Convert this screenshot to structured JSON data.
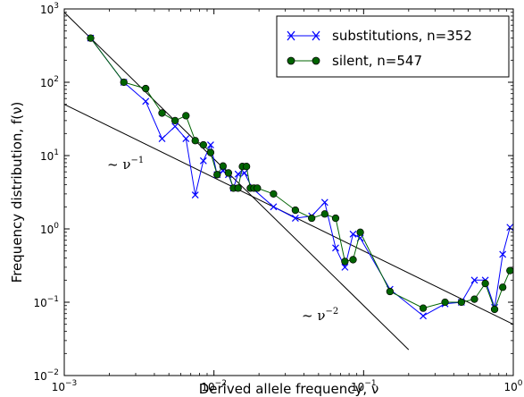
{
  "chart_data": {
    "type": "line",
    "xscale": "log",
    "yscale": "log",
    "xlim": [
      0.001,
      1
    ],
    "ylim": [
      0.01,
      1000
    ],
    "xlabel": "Derived allele frequency, ν",
    "ylabel": "Frequency distribution, f(ν)",
    "x_ticks": [
      {
        "base": "10",
        "exp": "−3"
      },
      {
        "base": "10",
        "exp": "−2"
      },
      {
        "base": "10",
        "exp": "−1"
      },
      {
        "base": "10",
        "exp": "0"
      }
    ],
    "y_ticks": [
      {
        "base": "10",
        "exp": "−2"
      },
      {
        "base": "10",
        "exp": "−1"
      },
      {
        "base": "10",
        "exp": "0"
      },
      {
        "base": "10",
        "exp": "1"
      },
      {
        "base": "10",
        "exp": "2"
      },
      {
        "base": "10",
        "exp": "3"
      }
    ],
    "legend_position": "top-right",
    "series": [
      {
        "name": "substitutions, n=352",
        "color": "#0000ff",
        "marker": "x",
        "x": [
          0.0015,
          0.0025,
          0.0035,
          0.0045,
          0.0055,
          0.0065,
          0.0075,
          0.0085,
          0.0095,
          0.0105,
          0.0115,
          0.0125,
          0.0135,
          0.0145,
          0.016,
          0.018,
          0.025,
          0.035,
          0.045,
          0.055,
          0.065,
          0.075,
          0.085,
          0.095,
          0.15,
          0.25,
          0.35,
          0.45,
          0.55,
          0.65,
          0.75,
          0.85,
          0.95
        ],
        "y": [
          400,
          100,
          55,
          17,
          25,
          17,
          2.9,
          8.5,
          14,
          5.5,
          6.2,
          5.5,
          3.6,
          5.6,
          5.8,
          3.6,
          2.0,
          1.4,
          1.5,
          2.3,
          0.55,
          0.3,
          0.85,
          0.75,
          0.15,
          0.065,
          0.095,
          0.1,
          0.2,
          0.2,
          0.085,
          0.45,
          1.05
        ]
      },
      {
        "name": "silent, n=547",
        "color": "#006400",
        "marker": "o",
        "x": [
          0.0015,
          0.0025,
          0.0035,
          0.0045,
          0.0055,
          0.0065,
          0.0075,
          0.0085,
          0.0095,
          0.0105,
          0.0115,
          0.0125,
          0.0135,
          0.0145,
          0.0155,
          0.0165,
          0.0175,
          0.0185,
          0.0195,
          0.025,
          0.035,
          0.045,
          0.055,
          0.065,
          0.075,
          0.085,
          0.095,
          0.15,
          0.25,
          0.35,
          0.45,
          0.55,
          0.65,
          0.75,
          0.85,
          0.95
        ],
        "y": [
          400,
          100,
          82,
          38,
          30,
          35,
          16,
          14,
          11,
          5.5,
          7.2,
          5.8,
          3.6,
          3.6,
          7.1,
          7.1,
          3.6,
          3.6,
          3.6,
          3.0,
          1.8,
          1.4,
          1.6,
          1.4,
          0.36,
          0.38,
          0.9,
          0.14,
          0.083,
          0.1,
          0.1,
          0.11,
          0.18,
          0.08,
          0.16,
          0.27
        ]
      }
    ],
    "reference_lines": [
      {
        "label_base": "~ ν",
        "label_exp": "−1",
        "x": [
          0.001,
          1
        ],
        "y": [
          50,
          0.05
        ]
      },
      {
        "label_base": "~ ν",
        "label_exp": "−2",
        "x": [
          0.001,
          0.2
        ],
        "y": [
          900,
          0.0225
        ]
      }
    ]
  }
}
